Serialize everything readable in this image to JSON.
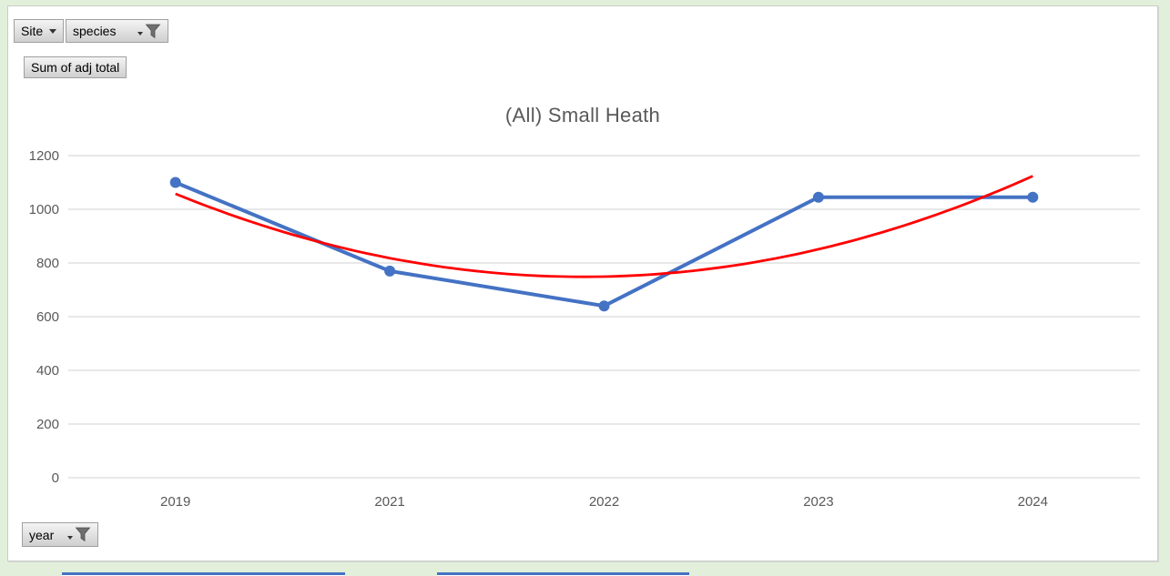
{
  "colors": {
    "page_background": "#e2efda",
    "chart_background": "#ffffff",
    "series_blue": "#4472C4",
    "trendline_red": "#FF0000",
    "gridline": "#d9d9d9",
    "axis_text": "#595959",
    "title_text": "#595959",
    "partial_object_border": "#4472C4"
  },
  "field_buttons": {
    "site": {
      "label": "Site",
      "has_dropdown": true,
      "has_filter": false
    },
    "species": {
      "label": "species",
      "has_dropdown": true,
      "has_filter": true
    },
    "value": {
      "label": "Sum of adj total",
      "has_dropdown": false,
      "has_filter": false
    },
    "year": {
      "label": "year",
      "has_dropdown": true,
      "has_filter": true
    }
  },
  "chart_data": {
    "type": "line",
    "title": "(All) Small Heath",
    "categories": [
      "2019",
      "2021",
      "2022",
      "2023",
      "2024"
    ],
    "series": [
      {
        "name": "Sum of adj total",
        "values": [
          1100,
          770,
          640,
          1045,
          1045
        ],
        "color": "#4472C4",
        "marker": "circle"
      }
    ],
    "trendline": {
      "type": "polynomial",
      "order": 2,
      "color": "#FF0000",
      "coefficients": {
        "a": 85.36,
        "b": -324.93,
        "c": 1057.7
      },
      "values_at_categories": [
        1058,
        818,
        749,
        851,
        1124
      ]
    },
    "xlabel": "",
    "ylabel": "",
    "ylim": [
      0,
      1200
    ],
    "yticks": [
      0,
      200,
      400,
      600,
      800,
      1000,
      1200
    ],
    "grid": true,
    "legend": "none"
  }
}
